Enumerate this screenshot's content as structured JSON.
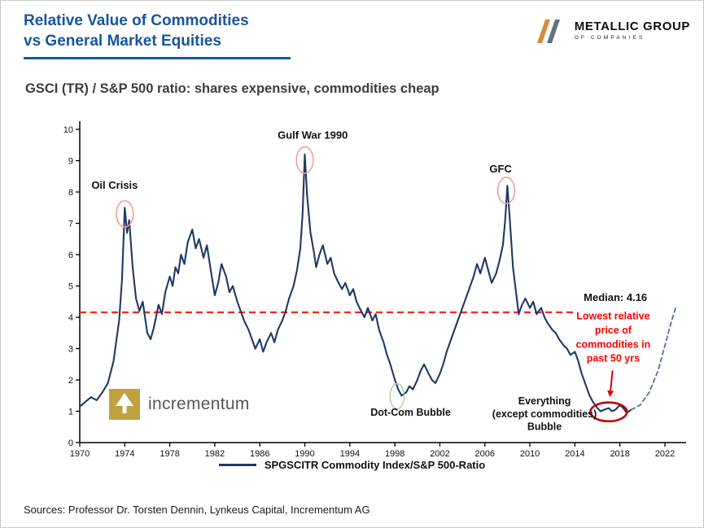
{
  "slide": {
    "title_line1": "Relative Value of Commodities",
    "title_line2": "vs General Market Equities",
    "chart_heading": "GSCI (TR) / S&P 500 ratio: shares expensive, commodities cheap",
    "sources": "Sources: Professor Dr. Torsten Dennin, Lynkeus Capital, Incrementum AG"
  },
  "brand": {
    "name": "METALLIC GROUP",
    "subtitle": "OF COMPANIES"
  },
  "watermark": {
    "label": "incrementum"
  },
  "legend": {
    "label": "SPGSCITR Commodity Index/S&P 500-Ratio"
  },
  "colors": {
    "title_blue": "#1656A0",
    "series_navy": "#203864",
    "median_red": "#FF2020",
    "annotation_red": "#FF0000",
    "projection_blue": "#51719E",
    "peak_circle_pink": "#F2A09C",
    "trough_circle_green": "#A9CDA2",
    "highlight_ellipse_red": "#C00000",
    "axis_black": "#000000",
    "gold": "#BFA23E"
  },
  "chart_data": {
    "type": "line",
    "title": "GSCI (TR) / S&P 500 ratio: shares expensive, commodities cheap",
    "xlabel": "",
    "ylabel": "",
    "xlim": [
      1970,
      2022
    ],
    "ylim": [
      0,
      10
    ],
    "grid": false,
    "x_ticks": [
      1970,
      1974,
      1978,
      1982,
      1986,
      1990,
      1994,
      1998,
      2002,
      2006,
      2010,
      2014,
      2018,
      2022
    ],
    "y_ticks": [
      0,
      1,
      2,
      3,
      4,
      5,
      6,
      7,
      8,
      9,
      10
    ],
    "median": {
      "value": 4.16,
      "label": "Median: 4.16",
      "from_x": 1970,
      "to_x": 2014
    },
    "series": [
      {
        "name": "SPGSCITR Commodity Index/S&P 500-Ratio",
        "line_style": "solid",
        "color": "#203864",
        "points": [
          [
            1970,
            1.15
          ],
          [
            1970.5,
            1.3
          ],
          [
            1971,
            1.45
          ],
          [
            1971.5,
            1.35
          ],
          [
            1972,
            1.6
          ],
          [
            1972.5,
            1.9
          ],
          [
            1973,
            2.6
          ],
          [
            1973.5,
            3.9
          ],
          [
            1973.75,
            5.2
          ],
          [
            1974,
            7.5
          ],
          [
            1974.2,
            6.7
          ],
          [
            1974.4,
            7.1
          ],
          [
            1974.7,
            5.6
          ],
          [
            1975,
            4.6
          ],
          [
            1975.3,
            4.2
          ],
          [
            1975.6,
            4.5
          ],
          [
            1976,
            3.5
          ],
          [
            1976.3,
            3.3
          ],
          [
            1976.6,
            3.7
          ],
          [
            1977,
            4.4
          ],
          [
            1977.3,
            4.1
          ],
          [
            1977.6,
            4.8
          ],
          [
            1978,
            5.3
          ],
          [
            1978.25,
            5.0
          ],
          [
            1978.5,
            5.6
          ],
          [
            1978.75,
            5.4
          ],
          [
            1979,
            6.0
          ],
          [
            1979.3,
            5.7
          ],
          [
            1979.6,
            6.4
          ],
          [
            1980,
            6.8
          ],
          [
            1980.3,
            6.2
          ],
          [
            1980.6,
            6.5
          ],
          [
            1981,
            5.9
          ],
          [
            1981.3,
            6.3
          ],
          [
            1981.6,
            5.6
          ],
          [
            1982,
            4.7
          ],
          [
            1982.3,
            5.1
          ],
          [
            1982.6,
            5.7
          ],
          [
            1983,
            5.3
          ],
          [
            1983.3,
            4.8
          ],
          [
            1983.6,
            5.0
          ],
          [
            1984,
            4.5
          ],
          [
            1984.3,
            4.2
          ],
          [
            1984.6,
            3.9
          ],
          [
            1985,
            3.6
          ],
          [
            1985.3,
            3.3
          ],
          [
            1985.6,
            3.0
          ],
          [
            1986,
            3.3
          ],
          [
            1986.3,
            2.9
          ],
          [
            1986.6,
            3.2
          ],
          [
            1987,
            3.5
          ],
          [
            1987.3,
            3.2
          ],
          [
            1987.6,
            3.6
          ],
          [
            1988,
            3.9
          ],
          [
            1988.3,
            4.2
          ],
          [
            1988.6,
            4.6
          ],
          [
            1989,
            5.0
          ],
          [
            1989.3,
            5.5
          ],
          [
            1989.6,
            6.2
          ],
          [
            1989.8,
            7.3
          ],
          [
            1990,
            9.2
          ],
          [
            1990.2,
            7.9
          ],
          [
            1990.5,
            6.7
          ],
          [
            1990.8,
            6.1
          ],
          [
            1991,
            5.6
          ],
          [
            1991.3,
            6.0
          ],
          [
            1991.6,
            6.3
          ],
          [
            1992,
            5.7
          ],
          [
            1992.3,
            5.9
          ],
          [
            1992.6,
            5.4
          ],
          [
            1993,
            5.1
          ],
          [
            1993.3,
            4.9
          ],
          [
            1993.6,
            5.1
          ],
          [
            1994,
            4.7
          ],
          [
            1994.3,
            4.9
          ],
          [
            1994.6,
            4.5
          ],
          [
            1995,
            4.2
          ],
          [
            1995.3,
            4.0
          ],
          [
            1995.6,
            4.3
          ],
          [
            1996,
            3.9
          ],
          [
            1996.3,
            4.1
          ],
          [
            1996.6,
            3.6
          ],
          [
            1997,
            3.2
          ],
          [
            1997.3,
            2.8
          ],
          [
            1997.6,
            2.5
          ],
          [
            1998,
            2.0
          ],
          [
            1998.3,
            1.7
          ],
          [
            1998.6,
            1.5
          ],
          [
            1999,
            1.6
          ],
          [
            1999.3,
            1.8
          ],
          [
            1999.6,
            1.7
          ],
          [
            2000,
            2.0
          ],
          [
            2000.3,
            2.3
          ],
          [
            2000.6,
            2.5
          ],
          [
            2001,
            2.2
          ],
          [
            2001.3,
            2.0
          ],
          [
            2001.6,
            1.9
          ],
          [
            2002,
            2.2
          ],
          [
            2002.3,
            2.5
          ],
          [
            2002.6,
            2.9
          ],
          [
            2003,
            3.3
          ],
          [
            2003.3,
            3.6
          ],
          [
            2003.6,
            3.9
          ],
          [
            2004,
            4.3
          ],
          [
            2004.3,
            4.6
          ],
          [
            2004.6,
            4.9
          ],
          [
            2005,
            5.3
          ],
          [
            2005.3,
            5.7
          ],
          [
            2005.6,
            5.4
          ],
          [
            2006,
            5.9
          ],
          [
            2006.3,
            5.5
          ],
          [
            2006.6,
            5.1
          ],
          [
            2007,
            5.4
          ],
          [
            2007.3,
            5.8
          ],
          [
            2007.6,
            6.3
          ],
          [
            2007.8,
            7.1
          ],
          [
            2008,
            8.2
          ],
          [
            2008.2,
            7.2
          ],
          [
            2008.5,
            5.6
          ],
          [
            2008.8,
            4.7
          ],
          [
            2009,
            4.1
          ],
          [
            2009.3,
            4.4
          ],
          [
            2009.6,
            4.6
          ],
          [
            2010,
            4.3
          ],
          [
            2010.3,
            4.5
          ],
          [
            2010.6,
            4.1
          ],
          [
            2011,
            4.3
          ],
          [
            2011.3,
            4.0
          ],
          [
            2011.6,
            3.8
          ],
          [
            2012,
            3.6
          ],
          [
            2012.3,
            3.5
          ],
          [
            2012.6,
            3.3
          ],
          [
            2013,
            3.1
          ],
          [
            2013.3,
            3.0
          ],
          [
            2013.6,
            2.8
          ],
          [
            2014,
            2.9
          ],
          [
            2014.3,
            2.6
          ],
          [
            2014.6,
            2.2
          ],
          [
            2015,
            1.8
          ],
          [
            2015.3,
            1.5
          ],
          [
            2015.6,
            1.3
          ],
          [
            2016,
            1.1
          ],
          [
            2016.3,
            1.0
          ],
          [
            2016.6,
            1.05
          ],
          [
            2017,
            1.1
          ],
          [
            2017.3,
            1.0
          ],
          [
            2017.6,
            1.05
          ],
          [
            2018,
            1.2
          ],
          [
            2018.3,
            1.1
          ],
          [
            2018.6,
            0.95
          ],
          [
            2019,
            1.05
          ]
        ]
      },
      {
        "name": "projected rebound (dashed)",
        "line_style": "dashed",
        "color": "#51719E",
        "points": [
          [
            2019,
            1.05
          ],
          [
            2019.8,
            1.2
          ],
          [
            2020.6,
            1.6
          ],
          [
            2021.4,
            2.3
          ],
          [
            2022.0,
            3.1
          ],
          [
            2022.6,
            3.9
          ],
          [
            2023.0,
            4.35
          ]
        ]
      }
    ],
    "annotations": {
      "labels": [
        {
          "id": "oil-crisis",
          "text": [
            "Oil Crisis"
          ],
          "x": 1973.1,
          "y": 8.1,
          "color": "#111111",
          "size": 13,
          "bold": true,
          "line_step": 0.45
        },
        {
          "id": "gulf-war",
          "text": [
            "Gulf War 1990"
          ],
          "x": 1990.7,
          "y": 9.7,
          "color": "#111111",
          "size": 13,
          "bold": true,
          "line_step": 0.45
        },
        {
          "id": "gfc",
          "text": [
            "GFC"
          ],
          "x": 2007.4,
          "y": 8.62,
          "color": "#111111",
          "size": 13,
          "bold": true,
          "line_step": 0.45
        },
        {
          "id": "dot-com-bubble",
          "text": [
            "Dot-Com Bubble"
          ],
          "x": 1999.4,
          "y": 0.86,
          "color": "#111111",
          "size": 12.5,
          "bold": true,
          "line_step": 0.45
        },
        {
          "id": "everything-bubble",
          "text": [
            "Everything",
            "(except commodities)",
            "Bubble"
          ],
          "x": 2011.3,
          "y": 1.22,
          "color": "#111111",
          "size": 12.5,
          "bold": true,
          "line_step": 0.41
        },
        {
          "id": "median-label",
          "text": [
            "Median: 4.16"
          ],
          "x": 2017.6,
          "y": 4.52,
          "color": "#111111",
          "size": 13,
          "bold": true,
          "line_step": 0.45
        },
        {
          "id": "lowest-relative-price",
          "text": [
            "Lowest relative",
            "price of",
            "commodities in",
            "past 50 yrs"
          ],
          "x": 2017.4,
          "y": 3.93,
          "color": "#FF0000",
          "size": 12.5,
          "bold": true,
          "line_step": 0.45
        }
      ],
      "circles": [
        {
          "id": "oil-crisis-circle",
          "cx": 1974.0,
          "cy": 7.3,
          "rx": 0.75,
          "ry": 0.42,
          "color": "#F2A09C",
          "width": 1.6
        },
        {
          "id": "gulf-war-circle",
          "cx": 1990.0,
          "cy": 9.02,
          "rx": 0.75,
          "ry": 0.42,
          "color": "#F2A09C",
          "width": 1.6
        },
        {
          "id": "gfc-circle",
          "cx": 2007.9,
          "cy": 8.05,
          "rx": 0.75,
          "ry": 0.42,
          "color": "#F2A09C",
          "width": 1.6
        },
        {
          "id": "dot-com-circle",
          "cx": 1998.2,
          "cy": 1.48,
          "rx": 0.62,
          "ry": 0.4,
          "color": "#A9CDA2",
          "width": 1.4
        },
        {
          "id": "lowest-ellipse",
          "cx": 2017.0,
          "cy": 0.98,
          "rx": 1.62,
          "ry": 0.3,
          "color": "#C00000",
          "width": 2.6
        }
      ],
      "arrow": {
        "id": "lowest-arrow",
        "x1": 2017.35,
        "y1": 2.3,
        "x2": 2017.1,
        "y2": 1.45,
        "color": "#E00000",
        "width": 2
      }
    }
  }
}
